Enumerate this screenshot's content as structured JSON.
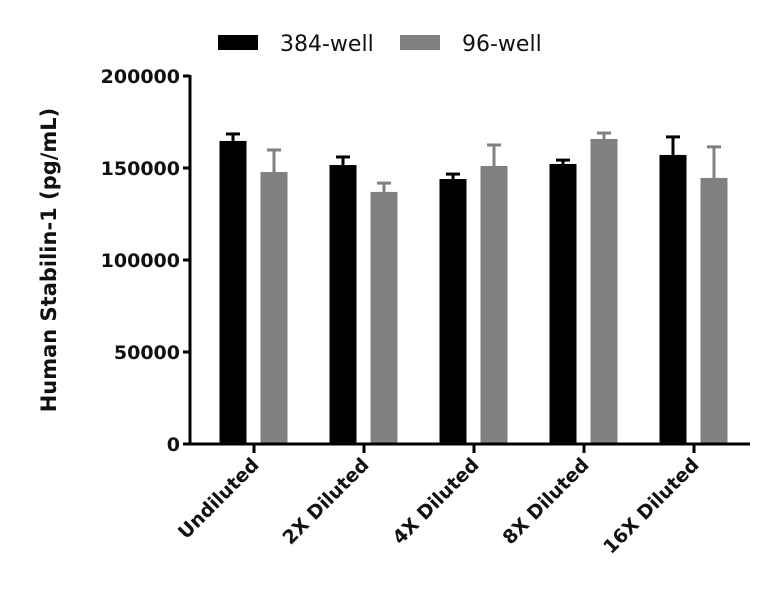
{
  "chart_data": {
    "type": "bar",
    "title": "",
    "xlabel": "",
    "ylabel": "Human Stabilin-1 (pg/mL)",
    "ylim": [
      0,
      200000
    ],
    "yticks": [
      0,
      50000,
      100000,
      150000,
      200000
    ],
    "ytick_labels": [
      "0",
      "50000",
      "100000",
      "150000",
      "200000"
    ],
    "categories": [
      "Undiluted",
      "2X Diluted",
      "4X Diluted",
      "8X Diluted",
      "16X Diluted"
    ],
    "legend_position": "top",
    "grid": false,
    "series": [
      {
        "name": "384-well",
        "color": "#000000",
        "values": [
          164700,
          151600,
          144000,
          152200,
          157100
        ],
        "error_plus": [
          3800,
          4400,
          2700,
          2100,
          9800
        ]
      },
      {
        "name": "96-well",
        "color": "#808080",
        "values": [
          147800,
          137000,
          151100,
          165800,
          144600
        ],
        "error_plus": [
          12000,
          4800,
          11400,
          3200,
          16900
        ]
      }
    ]
  }
}
